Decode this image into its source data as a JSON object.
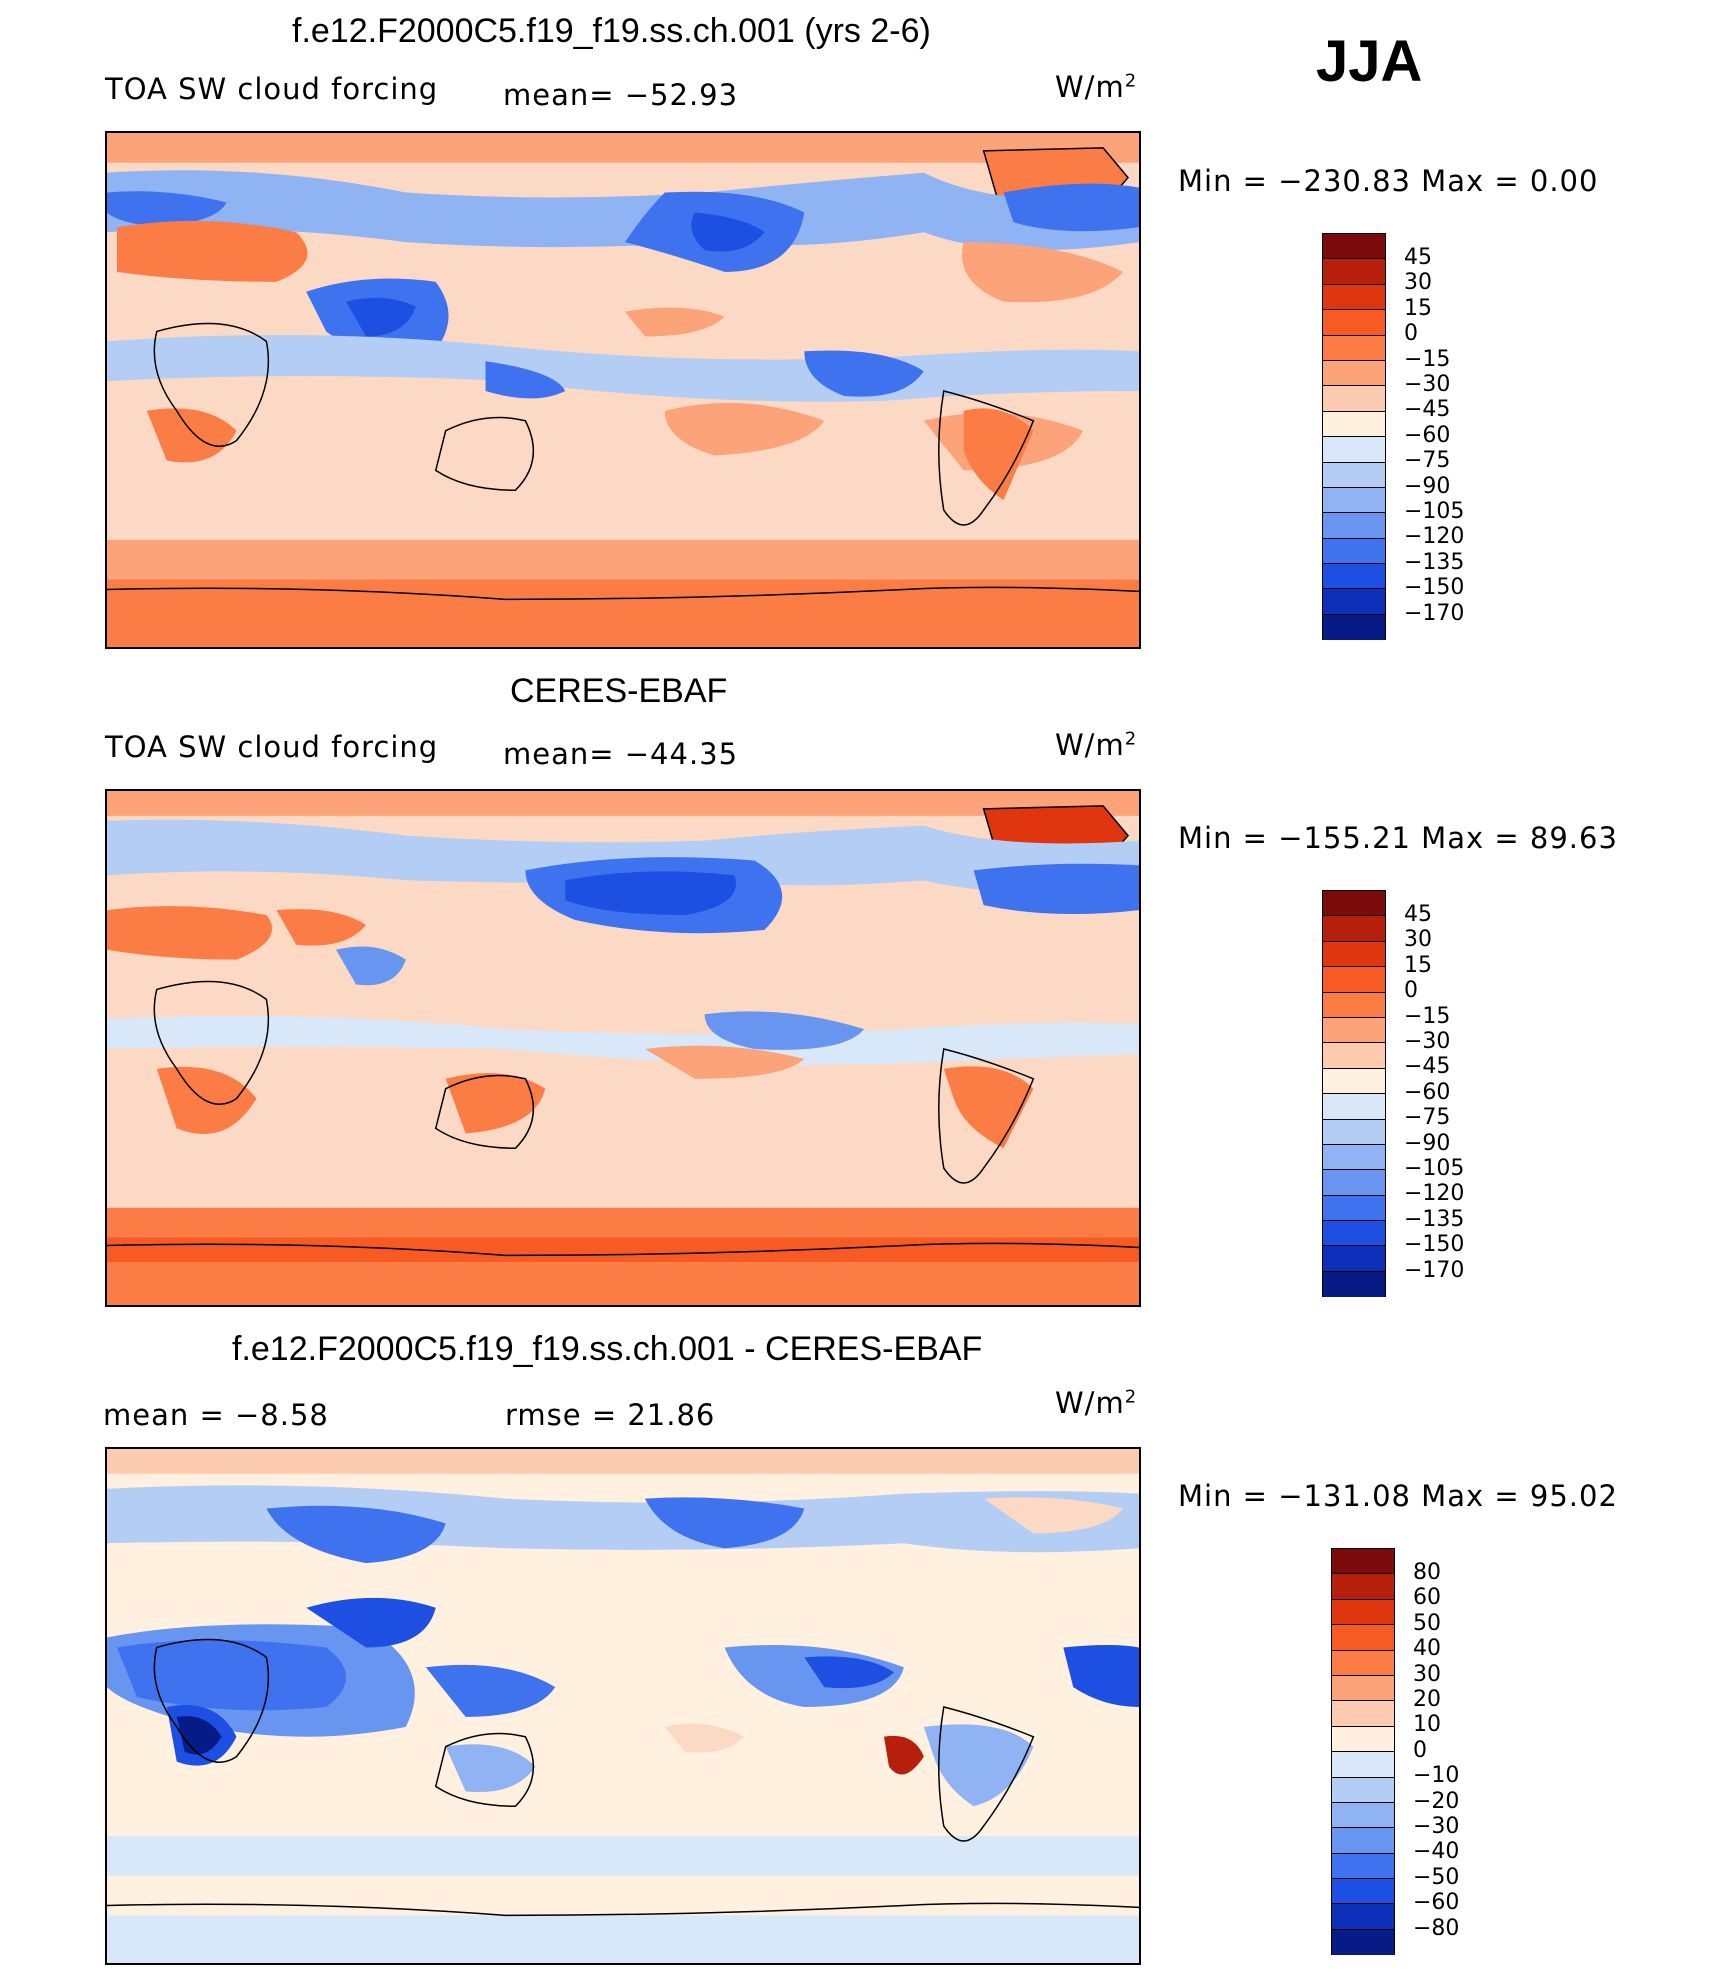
{
  "season": "JJA",
  "chart_data": [
    {
      "type": "heatmap",
      "title": "f.e12.F2000C5.f19_f19.ss.ch.001 (yrs 2-6)",
      "left_label": "TOA SW cloud forcing",
      "center_label": "mean= −52.93",
      "units": "W/m",
      "units_sup": "2",
      "minmax": "Min = −230.83 Max =   0.00",
      "colorbar": {
        "levels": [
          "45",
          "30",
          "15",
          "0",
          "−15",
          "−30",
          "−45",
          "−60",
          "−75",
          "−90",
          "−105",
          "−120",
          "−135",
          "−150",
          "−170"
        ],
        "colors": [
          "#7b0a0a",
          "#b51f0c",
          "#e0360f",
          "#f75a23",
          "#fb7d45",
          "#fca37a",
          "#fdcbb0",
          "#fff0df",
          "#d8e8f8",
          "#b4cdf4",
          "#8fb3f3",
          "#6895f0",
          "#3f72ee",
          "#1c4fe2",
          "#0e2fba",
          "#071b86"
        ]
      }
    },
    {
      "type": "heatmap",
      "title": "CERES-EBAF",
      "left_label": "TOA SW cloud forcing",
      "center_label": "mean= −44.35",
      "units": "W/m",
      "units_sup": "2",
      "minmax": "Min = −155.21 Max =  89.63",
      "colorbar": {
        "levels": [
          "45",
          "30",
          "15",
          "0",
          "−15",
          "−30",
          "−45",
          "−60",
          "−75",
          "−90",
          "−105",
          "−120",
          "−135",
          "−150",
          "−170"
        ],
        "colors": [
          "#7b0a0a",
          "#b51f0c",
          "#e0360f",
          "#f75a23",
          "#fb7d45",
          "#fca37a",
          "#fdcbb0",
          "#fff0df",
          "#d8e8f8",
          "#b4cdf4",
          "#8fb3f3",
          "#6895f0",
          "#3f72ee",
          "#1c4fe2",
          "#0e2fba",
          "#071b86"
        ]
      }
    },
    {
      "type": "heatmap",
      "title": "f.e12.F2000C5.f19_f19.ss.ch.001 - CERES-EBAF",
      "left_label": "mean =   −8.58",
      "center_label": "rmse =   21.86",
      "units": "W/m",
      "units_sup": "2",
      "minmax": "Min = −131.08 Max =  95.02",
      "colorbar": {
        "levels": [
          "80",
          "60",
          "50",
          "40",
          "30",
          "20",
          "10",
          "0",
          "−10",
          "−20",
          "−30",
          "−40",
          "−50",
          "−60",
          "−80"
        ],
        "colors": [
          "#7b0a0a",
          "#b51f0c",
          "#e0360f",
          "#f75a23",
          "#fb7d45",
          "#fca37a",
          "#fdcbb0",
          "#fff0df",
          "#d8e8f8",
          "#b4cdf4",
          "#8fb3f3",
          "#6895f0",
          "#3f72ee",
          "#1c4fe2",
          "#0e2fba",
          "#071b86"
        ]
      }
    }
  ]
}
